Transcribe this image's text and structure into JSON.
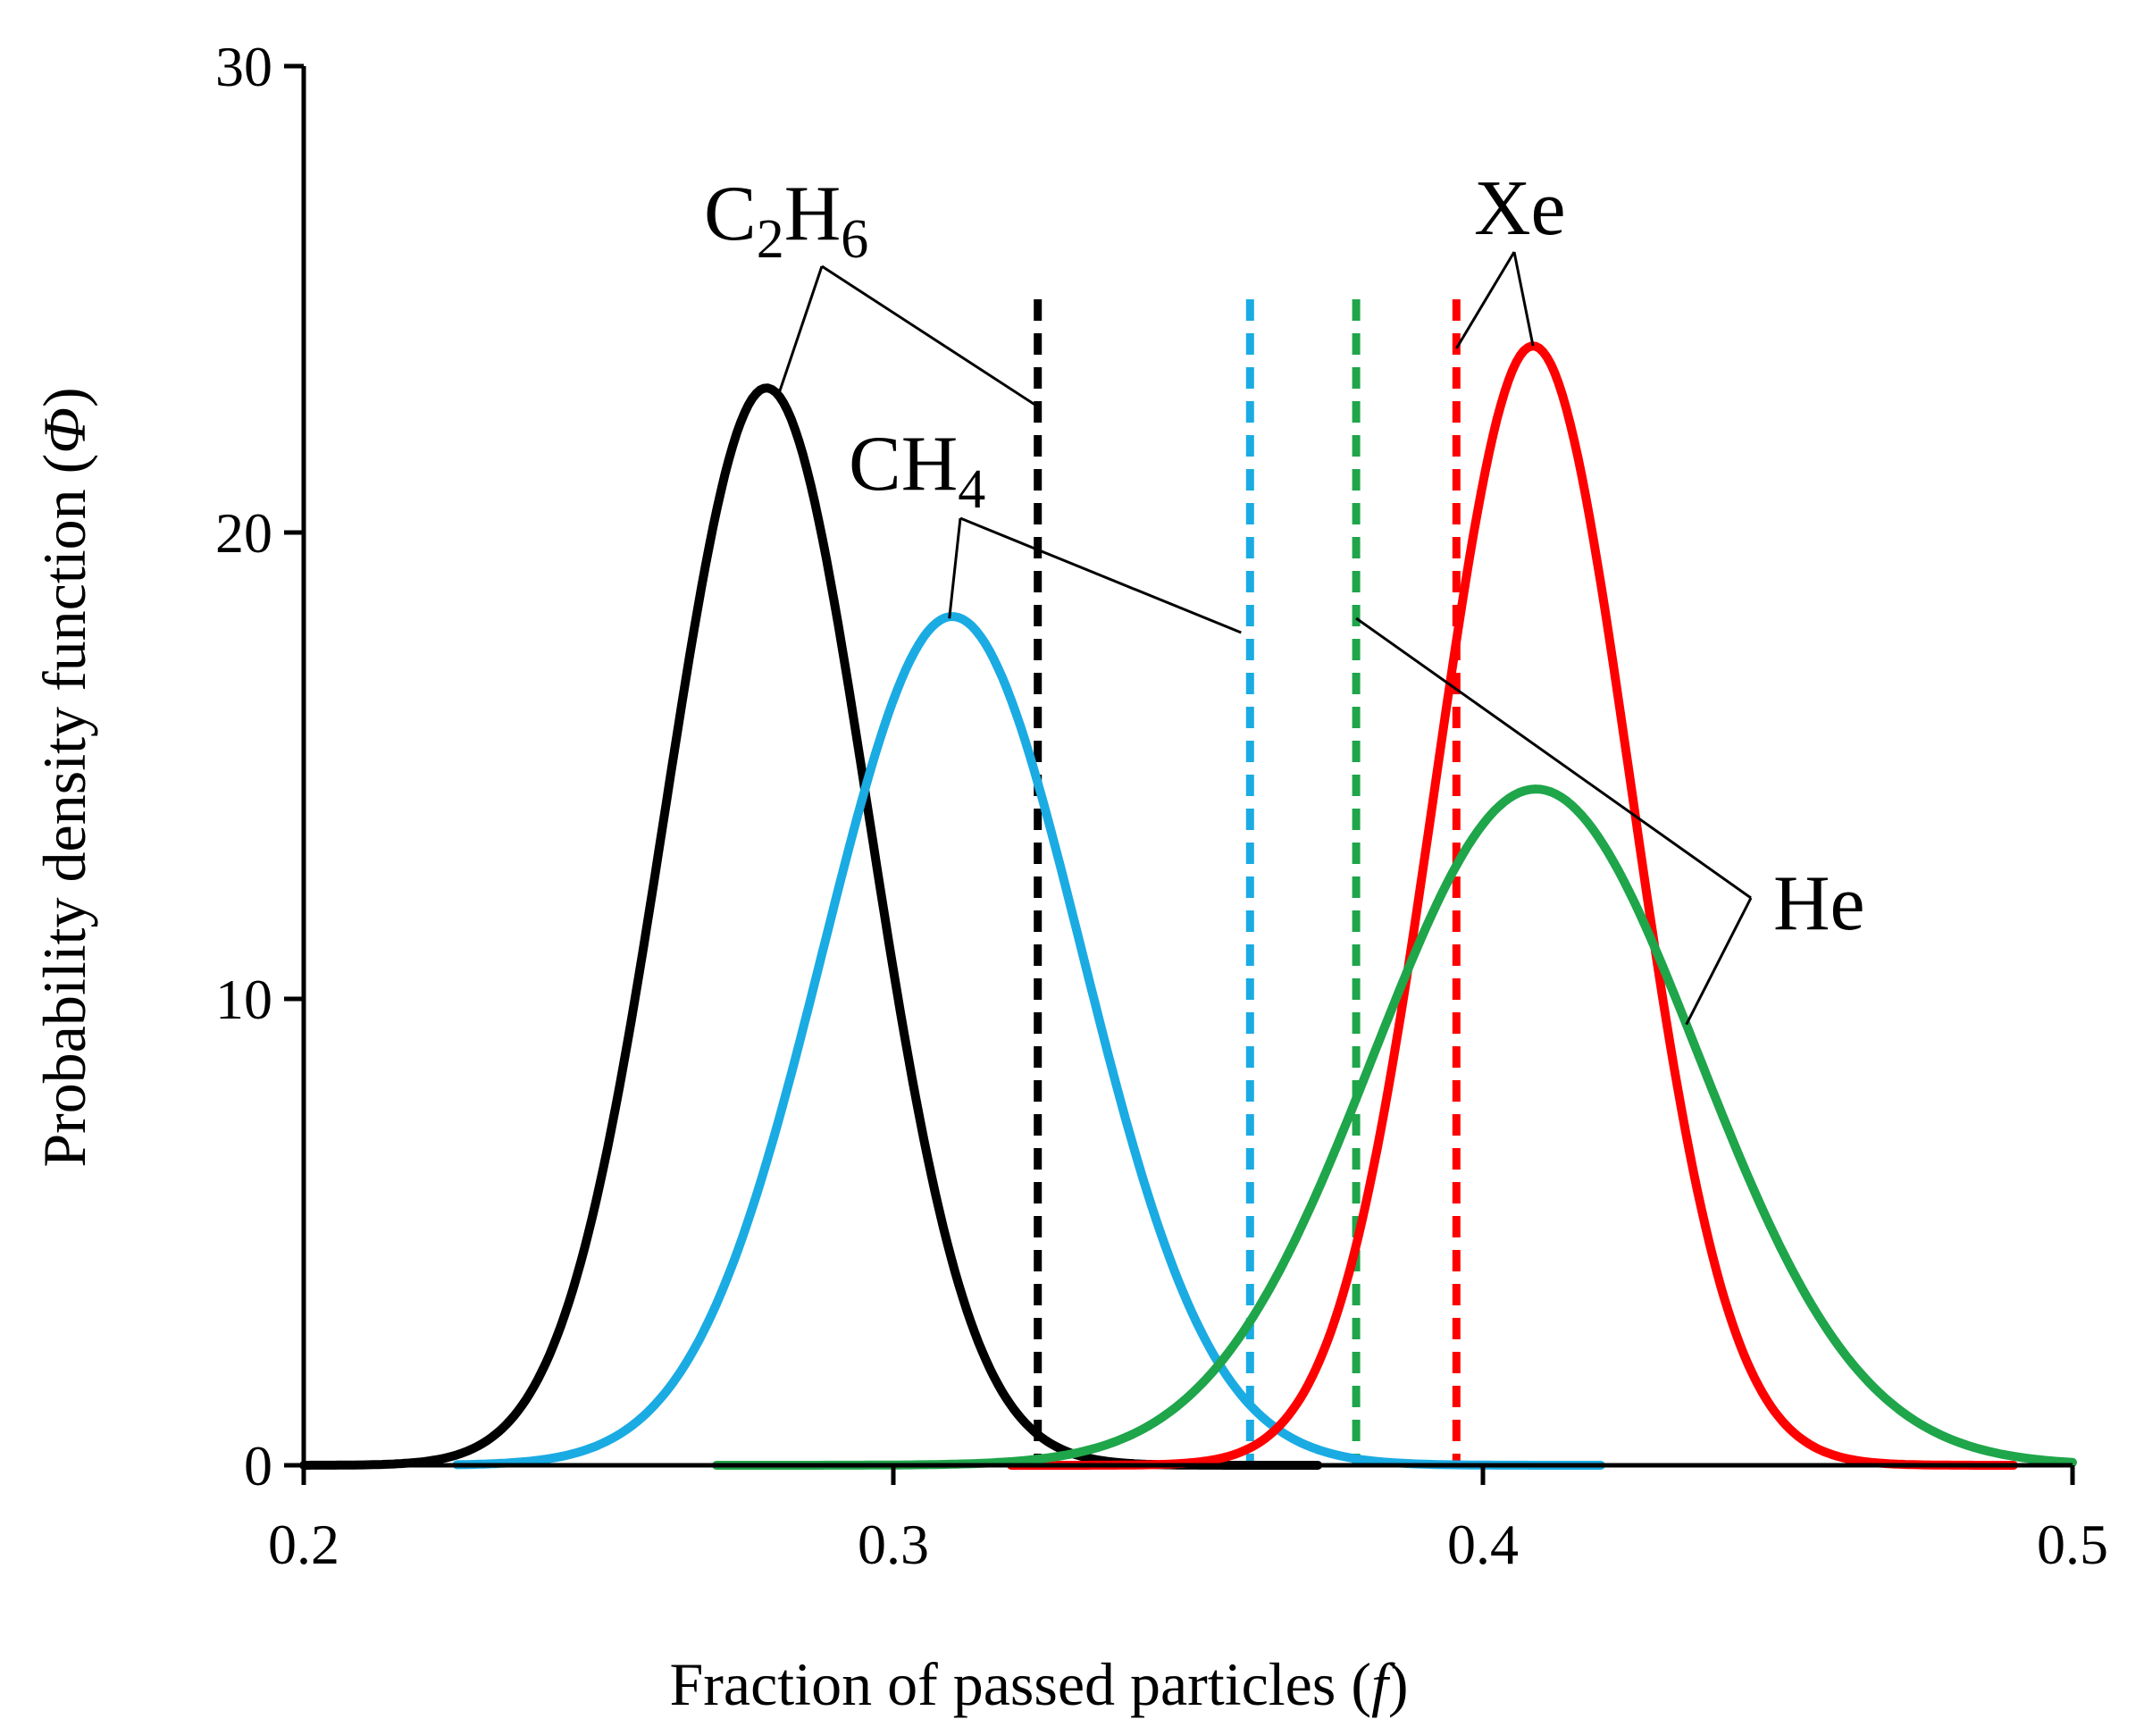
{
  "chart_data": {
    "type": "line",
    "title": "",
    "xlabel": "Fraction of passed particles (",
    "xlabel_symbol": "f",
    "xlabel_close": ")",
    "ylabel": "Probability density function (",
    "ylabel_symbol": "Φ",
    "ylabel_close": ")",
    "xlim": [
      0.2,
      0.5
    ],
    "ylim": [
      0,
      30
    ],
    "xticks": [
      0.2,
      0.3,
      0.4,
      0.5
    ],
    "xtick_labels": [
      "0.2",
      "0.3",
      "0.4",
      "0.5"
    ],
    "yticks": [
      0,
      10,
      20,
      30
    ],
    "ytick_labels": [
      "0",
      "10",
      "20",
      "30"
    ],
    "grid": false,
    "legend": "none (inline annotations)",
    "series": [
      {
        "name": "C2H6",
        "distribution": "normal",
        "mean": 0.2785,
        "std": 0.01725,
        "peak": 23.1,
        "x_range": [
          0.2,
          0.372
        ],
        "color": "#000000",
        "dashed_marker": 0.3245
      },
      {
        "name": "CH4",
        "distribution": "normal",
        "mean": 0.31,
        "std": 0.02195,
        "peak": 18.2,
        "x_range": [
          0.226,
          0.42
        ],
        "color": "#1aabe3",
        "dashed_marker": 0.3605
      },
      {
        "name": "Xe",
        "distribution": "normal",
        "mean": 0.4085,
        "std": 0.01663,
        "peak": 24.0,
        "x_range": [
          0.32,
          0.49
        ],
        "color": "#ff0000",
        "dashed_marker": 0.3955
      },
      {
        "name": "He",
        "distribution": "normal",
        "mean": 0.409,
        "std": 0.02756,
        "peak": 14.5,
        "x_range": [
          0.27,
          0.5
        ],
        "color": "#1fa54a",
        "dashed_marker": 0.3785
      }
    ],
    "dashed_lines_ymax": 25,
    "annotations": [
      {
        "series": "C2H6",
        "base": "C",
        "sub1": "2",
        "mid": "H",
        "sub2": "6"
      },
      {
        "series": "CH4",
        "base": "CH",
        "sub1": "4"
      },
      {
        "series": "Xe",
        "base": "Xe"
      },
      {
        "series": "He",
        "base": "He"
      }
    ]
  }
}
